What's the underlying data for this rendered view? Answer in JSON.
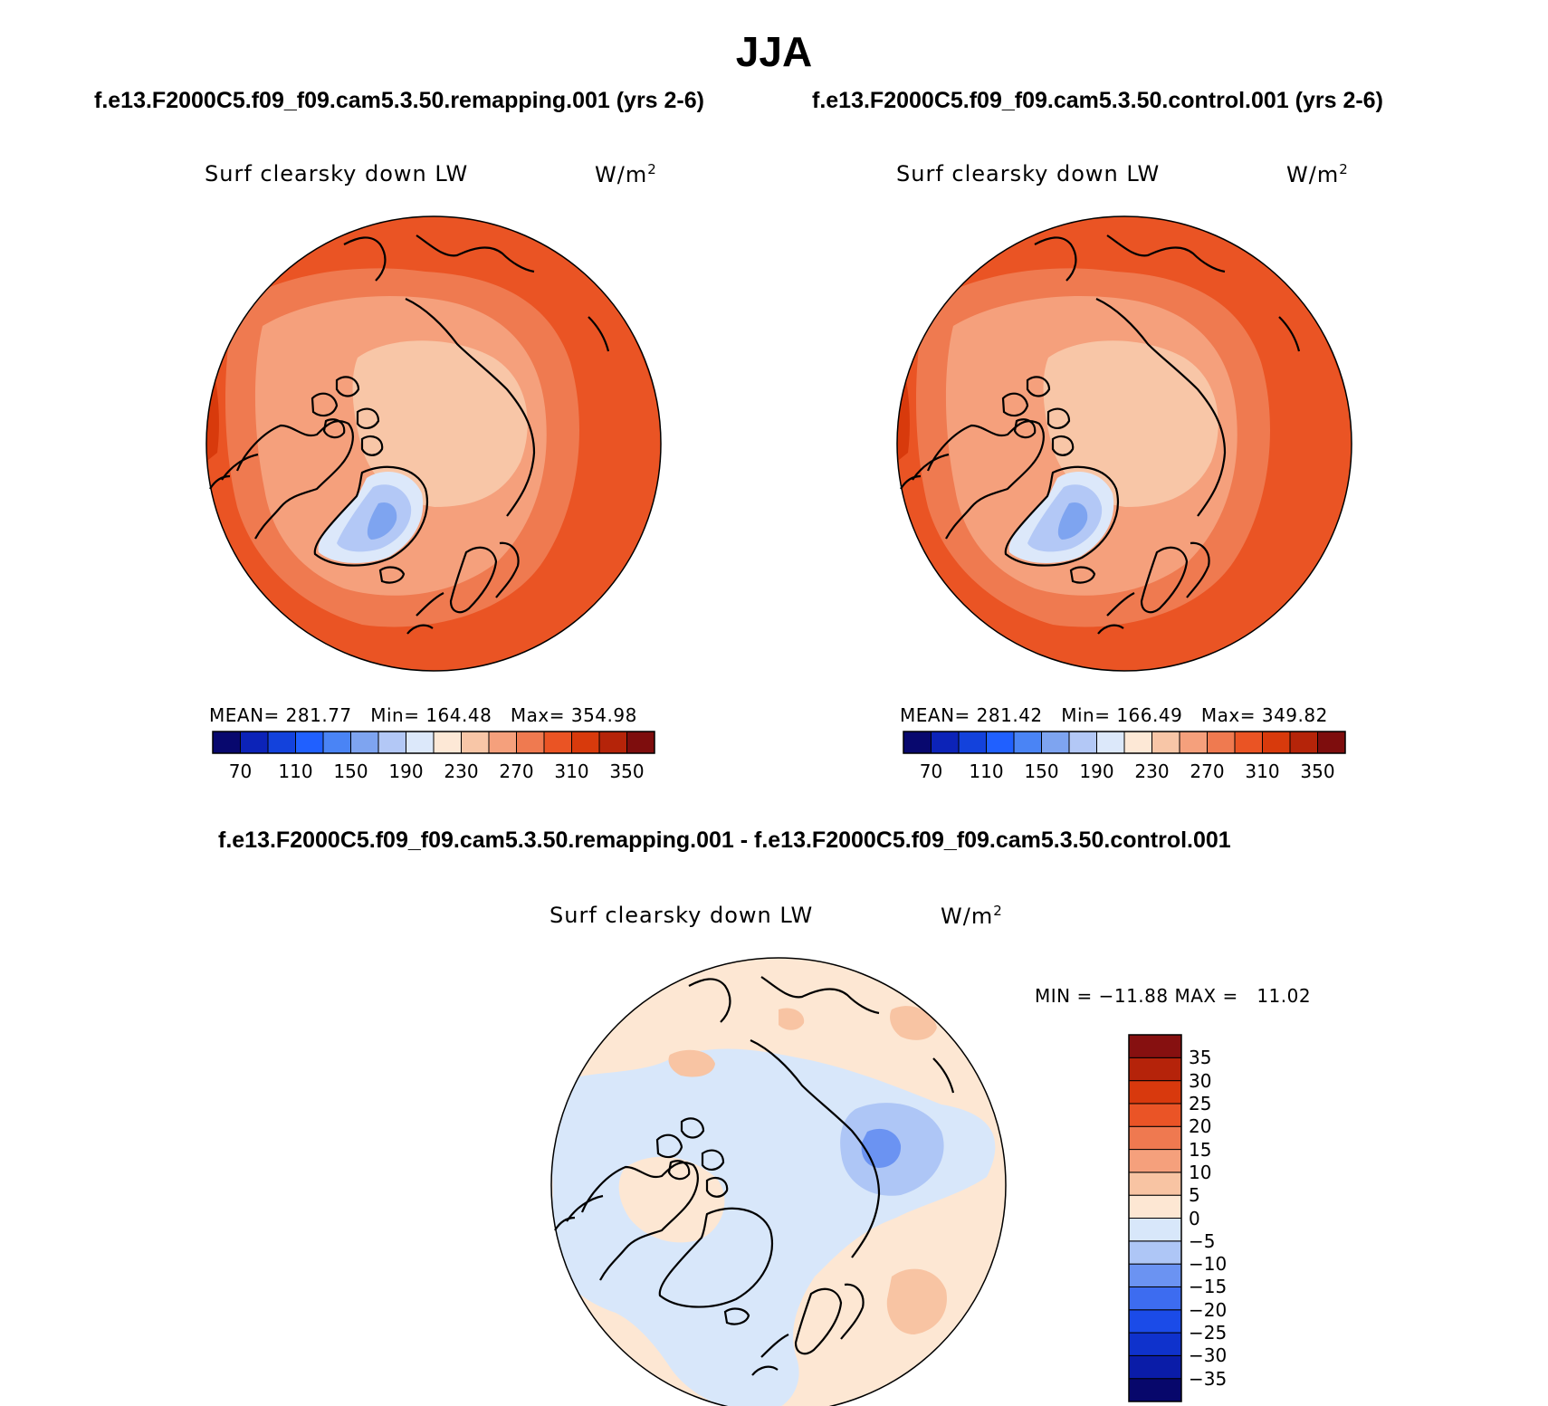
{
  "title": "JJA",
  "panels": [
    {
      "case": "f.e13.F2000C5.f09_f09.cam5.3.50.remapping.001 (yrs 2-6)",
      "variable": "Surf clearsky down LW",
      "units": "W/m",
      "units_sup": "2",
      "stats": {
        "mean_label": "MEAN=",
        "mean": "281.77",
        "min_label": "Min=",
        "min": "164.48",
        "max_label": "Max=",
        "max": "354.98"
      }
    },
    {
      "case": "f.e13.F2000C5.f09_f09.cam5.3.50.control.001 (yrs 2-6)",
      "variable": "Surf clearsky down LW",
      "units": "W/m",
      "units_sup": "2",
      "stats": {
        "mean_label": "MEAN=",
        "mean": "281.42",
        "min_label": "Min=",
        "min": "166.49",
        "max_label": "Max=",
        "max": "349.82"
      }
    },
    {
      "case": "f.e13.F2000C5.f09_f09.cam5.3.50.remapping.001 - f.e13.F2000C5.f09_f09.cam5.3.50.control.001",
      "variable": "Surf clearsky down LW",
      "units": "W/m",
      "units_sup": "2",
      "stats": {
        "min_label": "MIN =",
        "min": "−11.88",
        "max_label": "MAX =",
        "max": "11.02"
      }
    }
  ],
  "colorbar_abs": {
    "colors": [
      "#08086e",
      "#0c23b8",
      "#1342dc",
      "#2060ff",
      "#4a84f5",
      "#7ea4f0",
      "#b3c8f6",
      "#dce8fa",
      "#fde8d6",
      "#f8c6a7",
      "#f5a07c",
      "#ef7a50",
      "#ea5424",
      "#d83a0c",
      "#b52409",
      "#7e0d0d"
    ],
    "ticks": [
      "70",
      "110",
      "150",
      "190",
      "230",
      "270",
      "310",
      "350"
    ]
  },
  "colorbar_diff": {
    "colors": [
      "#07076b",
      "#0a1ca8",
      "#0f32cc",
      "#1b4be8",
      "#3d6cf0",
      "#6b93f2",
      "#aec6f6",
      "#d8e7fa",
      "#fde7d3",
      "#f8c4a3",
      "#f5a07c",
      "#ef7950",
      "#ea5426",
      "#d8390d",
      "#b5230a",
      "#861010"
    ],
    "ticks": [
      "35",
      "30",
      "25",
      "20",
      "15",
      "10",
      "5",
      "0",
      "−5",
      "−10",
      "−15",
      "−20",
      "−25",
      "−30",
      "−35"
    ]
  },
  "map_colors": {
    "ring_outer": "#ea5424",
    "ring_mid": "#ef7a50",
    "ring_inner": "#f5a07c",
    "center": "#f8c6a7",
    "greenland_outer": "#dce8fa",
    "greenland_mid": "#b3c8f6",
    "greenland_core": "#7ea4f0",
    "hot_spots": "#d83a0c",
    "diff_base": "#fde7d3",
    "diff_neg": "#d8e7fa",
    "diff_neg2": "#aec6f6",
    "diff_neg3": "#6b93f2",
    "diff_pos": "#f8c4a3"
  }
}
